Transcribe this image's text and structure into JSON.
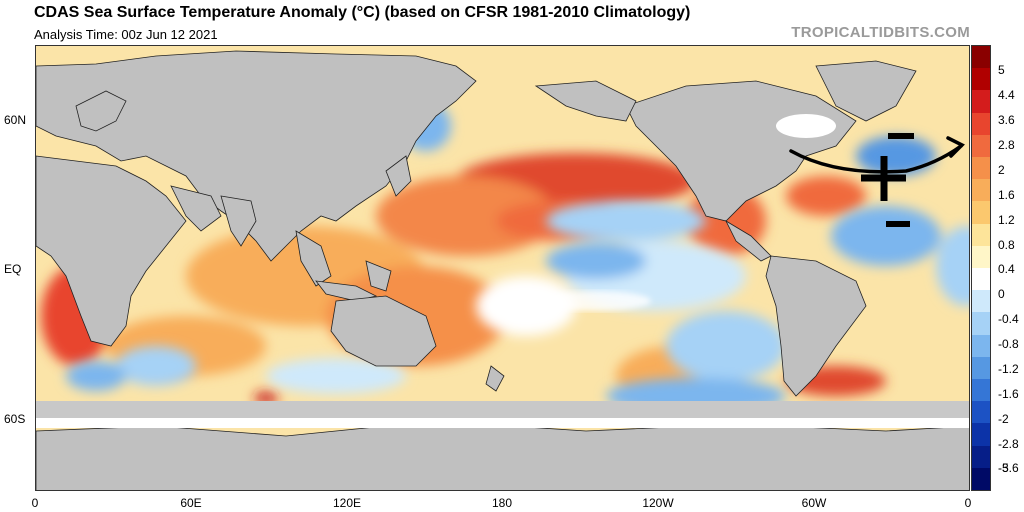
{
  "header": {
    "title": "CDAS Sea Surface Temperature Anomaly (°C) (based on CFSR 1981-2010 Climatology)",
    "analysis_time": "Analysis Time: 00z Jun 12 2021",
    "brand": "TROPICALTIDBITS.COM"
  },
  "axes": {
    "lat_labels": [
      "60N",
      "EQ",
      "60S"
    ],
    "lon_labels": [
      "0",
      "60E",
      "120E",
      "180",
      "120W",
      "60W",
      "0"
    ]
  },
  "colorbar": {
    "labels": [
      "5",
      "4.4",
      "3.6",
      "2.8",
      "2",
      "1.6",
      "1.2",
      "0.8",
      "0.4",
      "0",
      "-0.4",
      "-0.8",
      "-1.2",
      "-1.6",
      "-2",
      "-2.8",
      "-3.6",
      "-5"
    ],
    "colors": [
      "#8a0000",
      "#b00000",
      "#d41c1c",
      "#e8452e",
      "#f06a3e",
      "#f5904a",
      "#f8ad5a",
      "#fbc86e",
      "#fde49a",
      "#fff6c8",
      "#ffffff",
      "#cfe9fb",
      "#a6d2f6",
      "#7cb6ee",
      "#5698e2",
      "#3576d6",
      "#1c52c4",
      "#0c33a8",
      "#061e88",
      "#000a66"
    ]
  },
  "annotations": {
    "plus_sign": "+",
    "minus_top": "−",
    "minus_bottom": "−"
  },
  "colors": {
    "land": "#c0c0c0",
    "ocean_neutral": "#fdf0c4",
    "warm": "#f06a3e",
    "cool": "#7cb6ee",
    "ice": "#ffffff"
  }
}
